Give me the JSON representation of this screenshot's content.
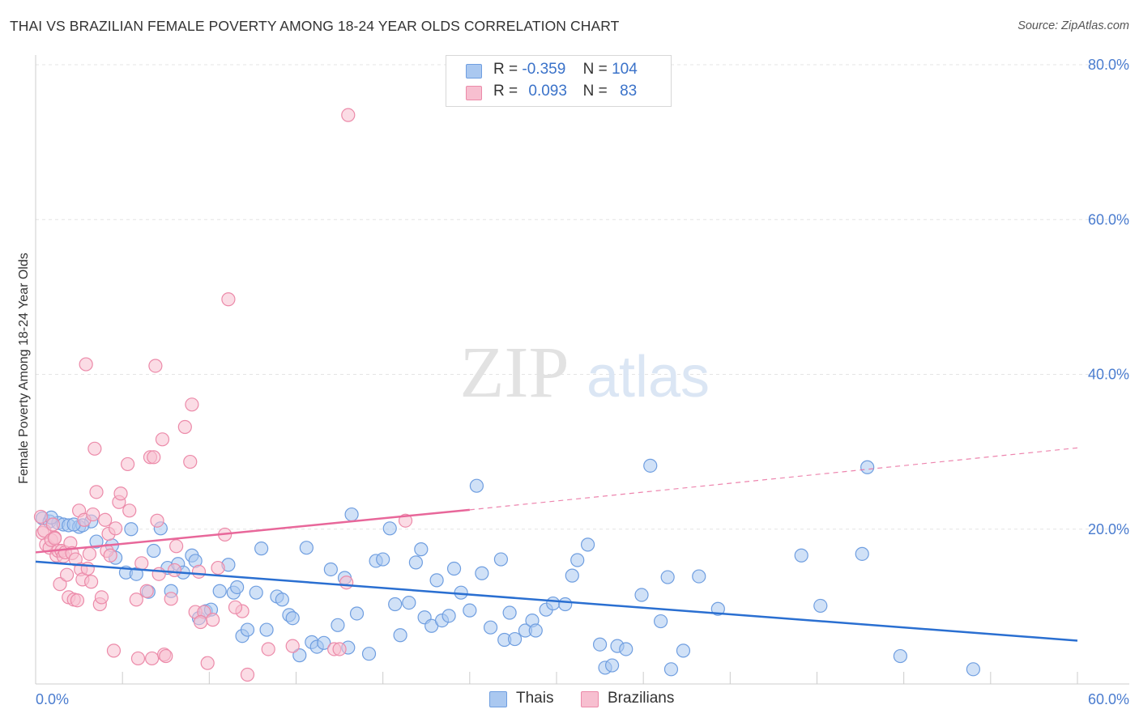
{
  "header": {
    "title": "THAI VS BRAZILIAN FEMALE POVERTY AMONG 18-24 YEAR OLDS CORRELATION CHART",
    "source": "Source: ZipAtlas.com"
  },
  "watermark": {
    "zip": "ZIP",
    "atlas": "atlas"
  },
  "legend_top": [
    {
      "r_label": "R =",
      "r_value": "-0.359",
      "n_label": "N =",
      "n_value": "104"
    },
    {
      "r_label": "R =",
      "r_value": "0.093",
      "n_label": "N =",
      "n_value": "83"
    }
  ],
  "legend_bottom": {
    "thais": "Thais",
    "brazilians": "Brazilians"
  },
  "colors": {
    "thais_fill": "#aac8f0",
    "thais_stroke": "#6f9ee0",
    "thais_line": "#2a6fd1",
    "brazilians_fill": "#f7bfd0",
    "brazilians_stroke": "#ec8aa9",
    "brazilians_line": "#e8679a",
    "tick_label": "#4a7ccf"
  },
  "chart_data": {
    "type": "scatter",
    "title": "THAI VS BRAZILIAN FEMALE POVERTY AMONG 18-24 YEAR OLDS CORRELATION CHART",
    "xlabel": "",
    "ylabel": "Female Poverty Among 18-24 Year Olds",
    "xlim": [
      0,
      60
    ],
    "ylim": [
      0,
      80
    ],
    "x_tick_labels": [
      {
        "value": 0,
        "label": "0.0%"
      },
      {
        "value": 60,
        "label": "60.0%"
      }
    ],
    "y_tick_labels": [
      {
        "value": 20,
        "label": "20.0%"
      },
      {
        "value": 40,
        "label": "40.0%"
      },
      {
        "value": 60,
        "label": "60.0%"
      },
      {
        "value": 80,
        "label": "80.0%"
      }
    ],
    "grid": true,
    "legend_position": "top-center",
    "series": [
      {
        "name": "Thais",
        "r": -0.359,
        "n": 104,
        "trend": {
          "x": [
            0,
            60
          ],
          "y": [
            15.8,
            5.6
          ]
        },
        "points": [
          [
            0.4,
            21.4
          ],
          [
            0.8,
            21.0
          ],
          [
            1.3,
            20.8
          ],
          [
            1.6,
            20.6
          ],
          [
            1.9,
            20.5
          ],
          [
            2.5,
            20.3
          ],
          [
            3.2,
            21.0
          ],
          [
            3.5,
            18.4
          ],
          [
            2.7,
            20.5
          ],
          [
            4.4,
            17.9
          ],
          [
            4.6,
            16.3
          ],
          [
            5.2,
            14.4
          ],
          [
            5.5,
            20.0
          ],
          [
            5.8,
            14.2
          ],
          [
            6.5,
            11.9
          ],
          [
            6.8,
            17.2
          ],
          [
            7.2,
            20.1
          ],
          [
            7.6,
            15.0
          ],
          [
            7.8,
            12.0
          ],
          [
            8.2,
            15.5
          ],
          [
            8.5,
            14.4
          ],
          [
            9.0,
            16.6
          ],
          [
            9.2,
            15.9
          ],
          [
            9.4,
            8.5
          ],
          [
            9.8,
            9.4
          ],
          [
            10.1,
            9.6
          ],
          [
            10.6,
            12.0
          ],
          [
            11.1,
            15.4
          ],
          [
            11.4,
            11.8
          ],
          [
            11.6,
            12.5
          ],
          [
            11.9,
            6.2
          ],
          [
            12.2,
            7.0
          ],
          [
            12.7,
            11.8
          ],
          [
            13.0,
            17.5
          ],
          [
            13.3,
            7.0
          ],
          [
            13.9,
            11.3
          ],
          [
            14.2,
            10.9
          ],
          [
            14.6,
            8.9
          ],
          [
            14.8,
            8.5
          ],
          [
            15.2,
            3.7
          ],
          [
            15.6,
            17.6
          ],
          [
            15.9,
            5.4
          ],
          [
            16.2,
            4.8
          ],
          [
            16.6,
            5.3
          ],
          [
            17.0,
            14.8
          ],
          [
            17.4,
            7.6
          ],
          [
            17.8,
            13.7
          ],
          [
            18.0,
            4.7
          ],
          [
            18.2,
            21.9
          ],
          [
            18.5,
            9.1
          ],
          [
            19.2,
            3.9
          ],
          [
            19.6,
            15.9
          ],
          [
            20.0,
            16.1
          ],
          [
            20.4,
            20.1
          ],
          [
            20.7,
            10.3
          ],
          [
            21.0,
            6.3
          ],
          [
            21.5,
            10.5
          ],
          [
            21.9,
            15.7
          ],
          [
            22.2,
            17.4
          ],
          [
            22.4,
            8.6
          ],
          [
            22.8,
            7.5
          ],
          [
            23.1,
            13.4
          ],
          [
            23.4,
            8.2
          ],
          [
            23.8,
            8.8
          ],
          [
            24.1,
            14.9
          ],
          [
            24.5,
            11.8
          ],
          [
            25.0,
            9.5
          ],
          [
            25.4,
            25.6
          ],
          [
            25.7,
            14.3
          ],
          [
            26.2,
            7.3
          ],
          [
            26.8,
            16.1
          ],
          [
            27.0,
            5.7
          ],
          [
            27.3,
            9.2
          ],
          [
            27.6,
            5.8
          ],
          [
            28.2,
            6.9
          ],
          [
            28.6,
            8.2
          ],
          [
            28.8,
            6.9
          ],
          [
            29.4,
            9.6
          ],
          [
            29.8,
            10.4
          ],
          [
            30.5,
            10.3
          ],
          [
            30.9,
            14.0
          ],
          [
            31.2,
            16.0
          ],
          [
            31.8,
            18.0
          ],
          [
            32.5,
            5.1
          ],
          [
            32.8,
            2.1
          ],
          [
            33.2,
            2.4
          ],
          [
            33.5,
            4.9
          ],
          [
            34.0,
            4.5
          ],
          [
            34.9,
            11.5
          ],
          [
            35.4,
            28.2
          ],
          [
            36.0,
            8.1
          ],
          [
            36.4,
            13.8
          ],
          [
            36.6,
            1.9
          ],
          [
            37.3,
            4.3
          ],
          [
            38.2,
            13.9
          ],
          [
            39.3,
            9.7
          ],
          [
            44.1,
            16.6
          ],
          [
            45.2,
            10.1
          ],
          [
            47.6,
            16.8
          ],
          [
            47.9,
            28.0
          ],
          [
            49.8,
            3.6
          ],
          [
            54.0,
            1.9
          ],
          [
            0.9,
            21.5
          ],
          [
            2.2,
            20.6
          ]
        ]
      },
      {
        "name": "Brazilians",
        "r": 0.093,
        "n": 83,
        "trend": {
          "x": [
            0,
            25
          ],
          "y": [
            17.0,
            22.5
          ],
          "dashed_to": {
            "x": 60,
            "y": 30.5
          }
        },
        "points": [
          [
            0.3,
            21.6
          ],
          [
            0.4,
            19.5
          ],
          [
            0.5,
            19.8
          ],
          [
            0.6,
            18.0
          ],
          [
            0.8,
            17.6
          ],
          [
            0.9,
            18.6
          ],
          [
            1.0,
            20.6
          ],
          [
            1.1,
            18.9
          ],
          [
            1.2,
            16.6
          ],
          [
            1.3,
            17.2
          ],
          [
            1.4,
            12.9
          ],
          [
            1.5,
            17.2
          ],
          [
            1.6,
            16.5
          ],
          [
            1.7,
            17.0
          ],
          [
            1.8,
            14.1
          ],
          [
            1.9,
            11.2
          ],
          [
            2.0,
            18.2
          ],
          [
            2.1,
            16.9
          ],
          [
            2.2,
            10.9
          ],
          [
            2.3,
            16.1
          ],
          [
            2.4,
            10.8
          ],
          [
            2.5,
            22.4
          ],
          [
            2.6,
            14.8
          ],
          [
            2.7,
            13.5
          ],
          [
            2.8,
            21.2
          ],
          [
            2.9,
            41.3
          ],
          [
            3.0,
            14.9
          ],
          [
            3.1,
            16.8
          ],
          [
            3.2,
            13.2
          ],
          [
            3.3,
            21.9
          ],
          [
            3.4,
            30.4
          ],
          [
            3.5,
            24.8
          ],
          [
            3.7,
            10.3
          ],
          [
            3.8,
            11.2
          ],
          [
            4.0,
            21.2
          ],
          [
            4.1,
            17.2
          ],
          [
            4.2,
            19.4
          ],
          [
            4.3,
            16.6
          ],
          [
            4.5,
            4.3
          ],
          [
            4.6,
            20.1
          ],
          [
            4.8,
            23.5
          ],
          [
            4.9,
            24.6
          ],
          [
            5.3,
            28.4
          ],
          [
            5.4,
            22.4
          ],
          [
            5.8,
            10.9
          ],
          [
            5.9,
            3.3
          ],
          [
            6.1,
            15.6
          ],
          [
            6.4,
            12.0
          ],
          [
            6.6,
            29.3
          ],
          [
            6.7,
            3.3
          ],
          [
            6.8,
            29.3
          ],
          [
            6.9,
            41.1
          ],
          [
            7.0,
            21.1
          ],
          [
            7.1,
            14.2
          ],
          [
            7.3,
            31.6
          ],
          [
            7.4,
            3.8
          ],
          [
            7.5,
            3.6
          ],
          [
            7.8,
            11.0
          ],
          [
            8.0,
            14.7
          ],
          [
            8.1,
            17.8
          ],
          [
            8.6,
            33.2
          ],
          [
            8.9,
            28.7
          ],
          [
            9.0,
            36.1
          ],
          [
            9.2,
            9.3
          ],
          [
            9.4,
            14.5
          ],
          [
            9.7,
            9.3
          ],
          [
            9.9,
            2.7
          ],
          [
            10.2,
            8.3
          ],
          [
            10.5,
            15.0
          ],
          [
            10.9,
            19.3
          ],
          [
            11.1,
            49.7
          ],
          [
            11.9,
            9.4
          ],
          [
            12.2,
            1.2
          ],
          [
            13.4,
            4.5
          ],
          [
            14.8,
            4.9
          ],
          [
            17.2,
            4.5
          ],
          [
            17.5,
            4.5
          ],
          [
            17.9,
            13.1
          ],
          [
            18.0,
            73.5
          ],
          [
            21.3,
            21.1
          ],
          [
            11.5,
            9.9
          ],
          [
            9.5,
            8.0
          ],
          [
            1.1,
            18.8
          ]
        ]
      }
    ]
  }
}
